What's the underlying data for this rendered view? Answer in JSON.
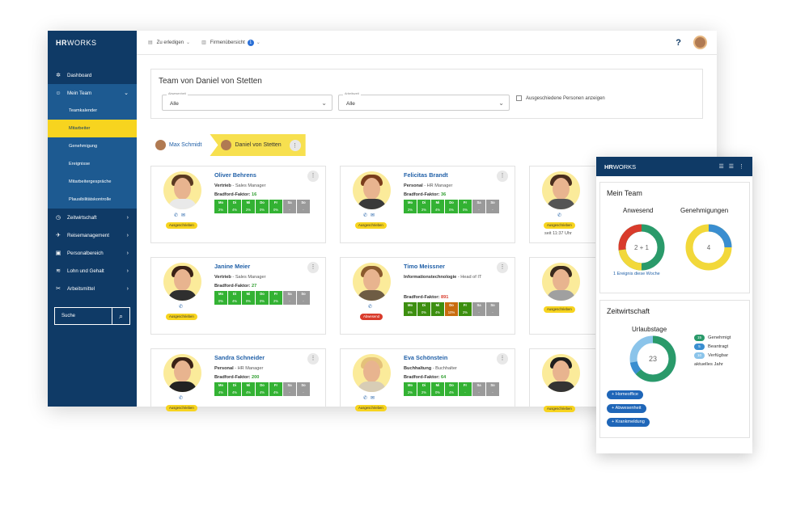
{
  "app": {
    "logo_bold": "HR",
    "logo_rest": "WORKS"
  },
  "sidebar": {
    "items": [
      {
        "label": "Dashboard",
        "icon": "dashboard-icon"
      },
      {
        "label": "Mein Team",
        "icon": "team-icon"
      },
      {
        "label": "Zeitwirtschaft",
        "icon": "clock-icon"
      },
      {
        "label": "Reisemanagement",
        "icon": "travel-icon"
      },
      {
        "label": "Personalbereich",
        "icon": "person-icon"
      },
      {
        "label": "Lohn und Gehalt",
        "icon": "money-icon"
      },
      {
        "label": "Arbeitsmittel",
        "icon": "tools-icon"
      }
    ],
    "subitems": [
      "Teamkalender",
      "Mitarbeiter",
      "Genehmigung",
      "Ereignisse",
      "Mitarbeitergespräche",
      "Plausibilitätskontrolle"
    ],
    "search_label": "Suche"
  },
  "topbar": {
    "todo": "Zu erledigen",
    "company": "Firmenübersicht",
    "company_badge": "1",
    "help": "?"
  },
  "filter": {
    "title": "Team von Daniel von Stetten",
    "absence_label": "Abwesenheit",
    "absence_value": "Alle",
    "work_label": "Arbeitszeit",
    "work_value": "Alle",
    "checkbox": "Ausgeschiedene Personen anzeigen"
  },
  "breadcrumb": {
    "first": "Max Schmidt",
    "second": "Daniel von Stetten"
  },
  "days": [
    "Mo",
    "Di",
    "Mi",
    "Do",
    "Fr",
    "Sa",
    "So"
  ],
  "cards": [
    {
      "name": "Oliver Behrens",
      "dept": "Vertrieb",
      "role": "Sales Manager",
      "bf_label": "Bradford-Faktor:",
      "bf": "16",
      "status": "Ausgeschrieben",
      "pct": [
        "2%",
        "4%",
        "2%",
        "0%",
        "0%",
        "-",
        "-"
      ],
      "colors": [
        "g",
        "g",
        "g",
        "g",
        "g",
        "gr",
        "gr"
      ]
    },
    {
      "name": "Felicitas Brandt",
      "dept": "Personal",
      "role": "HR Manager",
      "bf_label": "Bradford-Faktor:",
      "bf": "36",
      "status": "Ausgeschrieben",
      "pct": [
        "2%",
        "2%",
        "4%",
        "0%",
        "0%",
        "-",
        "-"
      ],
      "colors": [
        "g",
        "g",
        "g",
        "g",
        "g",
        "gr",
        "gr"
      ]
    },
    {
      "name": "Janine Meier",
      "dept": "Vertrieb",
      "role": "Sales Manager",
      "bf_label": "Bradford-Faktor:",
      "bf": "27",
      "status": "Ausgeschrieben",
      "pct": [
        "0%",
        "4%",
        "0%",
        "0%",
        "2%",
        "-",
        "-"
      ],
      "colors": [
        "g",
        "g",
        "g",
        "g",
        "g",
        "gr",
        "gr"
      ]
    },
    {
      "name": "Timo Meissner",
      "dept": "Informationstechnologie",
      "role": "Head of IT",
      "bf_label": "Bradford-Faktor:",
      "bf": "891",
      "status": "Abwesend",
      "pct": [
        "6%",
        "0%",
        "4%",
        "10%",
        "2%",
        "-",
        "-"
      ],
      "colors": [
        "dg",
        "dg",
        "dg",
        "o",
        "dg",
        "gr",
        "gr"
      ]
    },
    {
      "name": "Sandra Schneider",
      "dept": "Personal",
      "role": "HR Manager",
      "bf_label": "Bradford-Faktor:",
      "bf": "200",
      "status": "Ausgeschrieben",
      "pct": [
        "4%",
        "4%",
        "4%",
        "4%",
        "4%",
        "-",
        "-"
      ],
      "colors": [
        "g",
        "g",
        "g",
        "g",
        "g",
        "gr",
        "gr"
      ]
    },
    {
      "name": "Eva Schönstein",
      "dept": "Buchhaltung",
      "role": "Buchhalter",
      "bf_label": "Bradford-Faktor:",
      "bf": "64",
      "status": "Ausgeschrieben",
      "pct": [
        "2%",
        "2%",
        "0%",
        "4%",
        "-",
        "-",
        "-"
      ],
      "colors": [
        "g",
        "g",
        "g",
        "g",
        "g",
        "gr",
        "gr"
      ]
    }
  ],
  "partial_cards": {
    "c1_status": "Ausgeschrieben",
    "c1_since": "seit 11:37 Uhr",
    "c2_status": "Ausgeschrieben",
    "c3_status": "Ausgeschrieben"
  },
  "panel": {
    "logo_bold": "HR",
    "logo_rest": "WORKS",
    "team_title": "Mein Team",
    "present_label": "Anwesend",
    "present_value": "2 + 1",
    "approvals_label": "Genehmigungen",
    "approvals_value": "4",
    "event_link": "1 Ereignis diese Woche",
    "time_title": "Zeitwirtschaft",
    "vacation_label": "Urlaubstage",
    "vacation_value": "23",
    "legend": [
      {
        "n": "15",
        "label": "Genehmigt",
        "color": "#2a9a6a"
      },
      {
        "n": "5",
        "label": "Beantragt",
        "color": "#3a8ed0"
      },
      {
        "n": "10",
        "label": "Verfügbar",
        "color": "#8bc4ea"
      }
    ],
    "year_note": "aktuelles Jahr",
    "buttons": [
      "+ Homeoffice",
      "+ Abwesenheit",
      "+ Krankmeldung"
    ]
  }
}
